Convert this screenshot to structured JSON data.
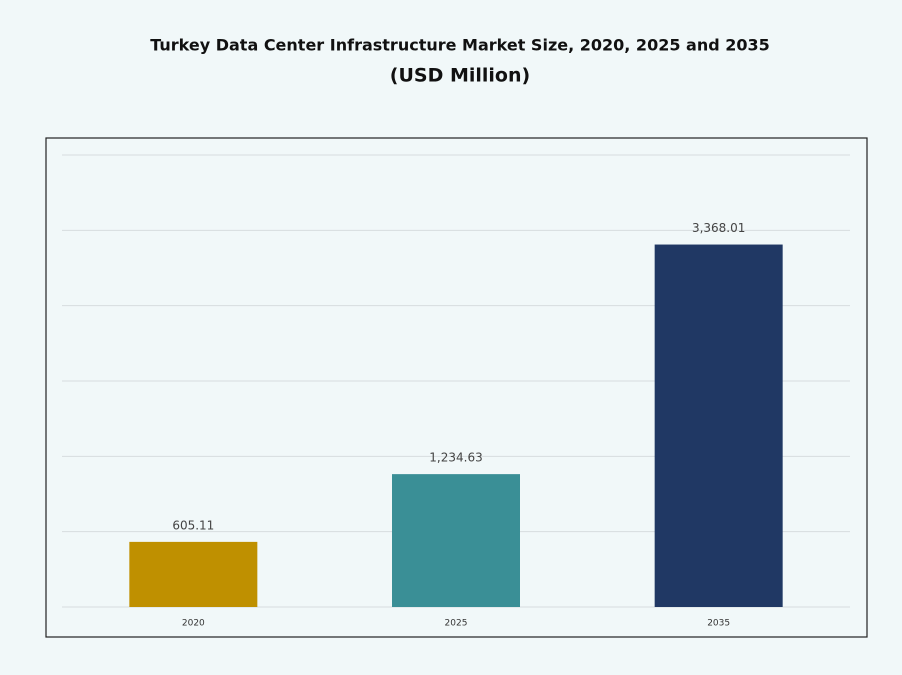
{
  "chart_data": {
    "type": "bar",
    "title": "Turkey Data Center Infrastructure  Market Size, 2020, 2025 and 2035",
    "subtitle": "(USD Million)",
    "categories": [
      "2020",
      "2025",
      "2035"
    ],
    "values": [
      605.11,
      1234.63,
      3368.01
    ],
    "value_labels": [
      "605.11",
      "1,234.63",
      "3,368.01"
    ],
    "colors": [
      "#bf9000",
      "#3a8f96",
      "#203864"
    ],
    "ylim": [
      0,
      4200
    ],
    "yticks": [
      0,
      700,
      1400,
      2100,
      2800,
      3500,
      4200
    ],
    "show_ytick_labels": false,
    "grid": true
  }
}
